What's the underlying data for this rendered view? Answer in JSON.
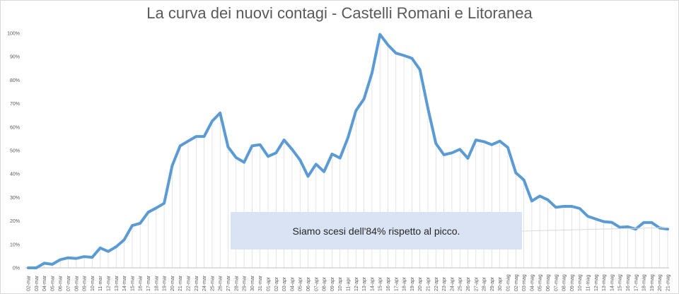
{
  "title": "La curva dei nuovi contagi - Castelli Romani e Litoranea",
  "annotation": "Siamo scesi dell'84% rispetto al picco.",
  "chart_data": {
    "type": "line",
    "title": "La curva dei nuovi contagi - Castelli Romani e Litoranea",
    "xlabel": "",
    "ylabel": "",
    "ylim": [
      0,
      1.0
    ],
    "y_ticks": [
      "0%",
      "10%",
      "20%",
      "30%",
      "40%",
      "50%",
      "60%",
      "70%",
      "80%",
      "90%",
      "100%"
    ],
    "grid": "vertical drop lines",
    "line_color": "#5b9bd5",
    "categories": [
      "02-mar",
      "03-mar",
      "04-mar",
      "05-mar",
      "06-mar",
      "07-mar",
      "08-mar",
      "09-mar",
      "10-mar",
      "11-mar",
      "12-mar",
      "13-mar",
      "14-mar",
      "15-mar",
      "16-mar",
      "17-mar",
      "18-mar",
      "19-mar",
      "20-mar",
      "21-mar",
      "22-mar",
      "23-mar",
      "24-mar",
      "25-mar",
      "26-mar",
      "27-mar",
      "28-mar",
      "29-mar",
      "30-mar",
      "31-mar",
      "01-apr",
      "02-apr",
      "03-apr",
      "04-apr",
      "05-apr",
      "06-apr",
      "07-apr",
      "08-apr",
      "09-apr",
      "10-apr",
      "11-apr",
      "12-apr",
      "13-apr",
      "14-apr",
      "15-apr",
      "16-apr",
      "17-apr",
      "18-apr",
      "19-apr",
      "20-apr",
      "21-apr",
      "22-apr",
      "23-apr",
      "24-apr",
      "25-apr",
      "26-apr",
      "27-apr",
      "28-apr",
      "29-apr",
      "30-apr",
      "01-mag",
      "02-mag",
      "03-mag",
      "04-mag",
      "05-mag",
      "06-mag",
      "07-mag",
      "08-mag",
      "09-mag",
      "10-mag",
      "11-mag",
      "12-mag",
      "13-mag",
      "14-mag",
      "15-mag",
      "16-mag",
      "17-mag",
      "18-mag",
      "19-mag",
      "20-mag",
      "21-mag"
    ],
    "values": [
      0.0,
      0.0,
      0.02,
      0.015,
      0.035,
      0.043,
      0.04,
      0.048,
      0.045,
      0.085,
      0.07,
      0.09,
      0.12,
      0.18,
      0.19,
      0.237,
      0.255,
      0.275,
      0.435,
      0.52,
      0.54,
      0.56,
      0.56,
      0.625,
      0.66,
      0.515,
      0.47,
      0.45,
      0.52,
      0.525,
      0.475,
      0.49,
      0.545,
      0.505,
      0.46,
      0.39,
      0.442,
      0.41,
      0.485,
      0.468,
      0.555,
      0.67,
      0.72,
      0.83,
      0.995,
      0.95,
      0.915,
      0.905,
      0.893,
      0.845,
      0.68,
      0.53,
      0.482,
      0.49,
      0.505,
      0.467,
      0.545,
      0.538,
      0.525,
      0.54,
      0.513,
      0.405,
      0.375,
      0.285,
      0.306,
      0.29,
      0.258,
      0.262,
      0.262,
      0.253,
      0.22,
      0.208,
      0.197,
      0.194,
      0.173,
      0.175,
      0.165,
      0.193,
      0.193,
      0.17,
      0.165
    ]
  }
}
